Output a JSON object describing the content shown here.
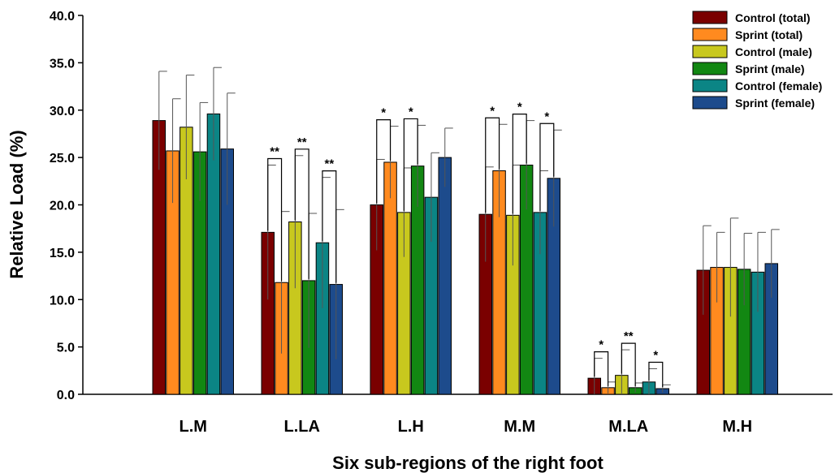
{
  "chart_data": {
    "type": "bar",
    "title": "",
    "xlabel": "Six sub-regions of the right foot",
    "ylabel": "Relative Load (%)",
    "ylim": [
      0,
      40
    ],
    "yticks": [
      "0.0",
      "5.0",
      "10.0",
      "15.0",
      "20.0",
      "25.0",
      "30.0",
      "35.0",
      "40.0"
    ],
    "categories": [
      "L.M",
      "L.LA",
      "L.H",
      "M.M",
      "M.LA",
      "M.H"
    ],
    "legend_position": "top-right",
    "grid": false,
    "series": [
      {
        "name": "Control (total)",
        "color": "#7a0000",
        "values": [
          28.9,
          17.1,
          20.0,
          19.0,
          1.7,
          13.1
        ],
        "errors": [
          5.2,
          7.1,
          4.8,
          5.0,
          2.1,
          4.7
        ]
      },
      {
        "name": "Sprint (total)",
        "color": "#ff8a1f",
        "values": [
          25.7,
          11.8,
          24.5,
          23.6,
          0.7,
          13.4
        ],
        "errors": [
          5.5,
          7.5,
          3.8,
          4.9,
          0.6,
          3.7
        ]
      },
      {
        "name": "Control (male)",
        "color": "#c8c81e",
        "values": [
          28.2,
          18.2,
          19.2,
          18.9,
          2.0,
          13.4
        ],
        "errors": [
          5.5,
          7.0,
          4.7,
          5.3,
          2.7,
          5.2
        ]
      },
      {
        "name": "Sprint (male)",
        "color": "#128712",
        "values": [
          25.6,
          12.0,
          24.1,
          24.2,
          0.7,
          13.2
        ],
        "errors": [
          5.2,
          7.1,
          4.3,
          4.7,
          0.5,
          3.8
        ]
      },
      {
        "name": "Control (female)",
        "color": "#0b8585",
        "values": [
          29.6,
          16.0,
          20.8,
          19.2,
          1.3,
          12.9
        ],
        "errors": [
          4.9,
          6.9,
          4.7,
          4.4,
          1.4,
          4.2
        ]
      },
      {
        "name": "Sprint (female)",
        "color": "#1d4b8c",
        "values": [
          25.9,
          11.6,
          25.0,
          22.8,
          0.6,
          13.8
        ],
        "errors": [
          5.9,
          7.9,
          3.1,
          5.1,
          0.4,
          3.6
        ]
      }
    ],
    "significance": [
      {
        "category": "L.LA",
        "pair": [
          0,
          1
        ],
        "label": "**"
      },
      {
        "category": "L.LA",
        "pair": [
          2,
          3
        ],
        "label": "**"
      },
      {
        "category": "L.LA",
        "pair": [
          4,
          5
        ],
        "label": "**"
      },
      {
        "category": "L.H",
        "pair": [
          0,
          1
        ],
        "label": "*"
      },
      {
        "category": "L.H",
        "pair": [
          2,
          3
        ],
        "label": "*"
      },
      {
        "category": "M.M",
        "pair": [
          0,
          1
        ],
        "label": "*"
      },
      {
        "category": "M.M",
        "pair": [
          2,
          3
        ],
        "label": "*"
      },
      {
        "category": "M.M",
        "pair": [
          4,
          5
        ],
        "label": "*"
      },
      {
        "category": "M.LA",
        "pair": [
          0,
          1
        ],
        "label": "*"
      },
      {
        "category": "M.LA",
        "pair": [
          2,
          3
        ],
        "label": "**"
      },
      {
        "category": "M.LA",
        "pair": [
          4,
          5
        ],
        "label": "*"
      }
    ]
  }
}
